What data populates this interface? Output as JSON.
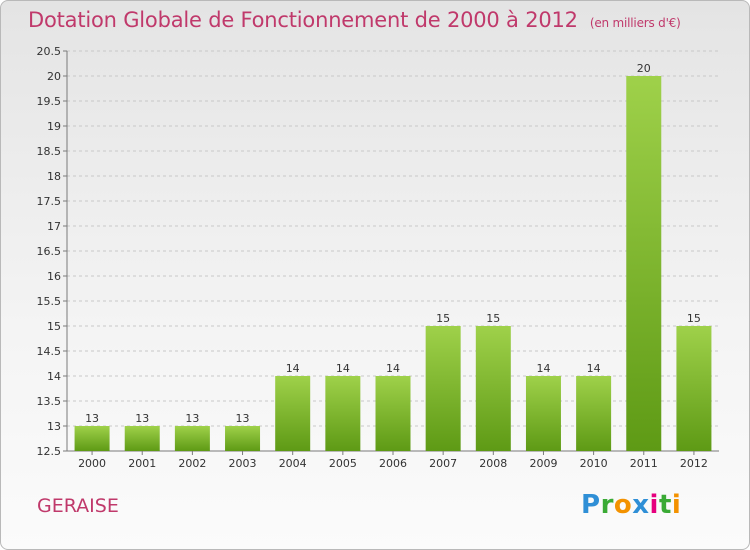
{
  "title": "Dotation Globale de Fonctionnement de 2000 à 2012",
  "subtitle": "(en milliers d'€)",
  "commune": "GERAISE",
  "logo": {
    "letters": [
      "P",
      "r",
      "o",
      "x",
      "i",
      "t",
      "i"
    ],
    "colors": [
      "#2f8fd6",
      "#3aaa35",
      "#f39200",
      "#2f8fd6",
      "#e6007e",
      "#3aaa35",
      "#f39200"
    ]
  },
  "colors": {
    "title": "#c0396b",
    "bar_light": "#9fd14a",
    "bar_dark": "#5e9a15",
    "grid": "#c8c8c8",
    "axis": "#7a7a7a"
  },
  "chart_data": {
    "type": "bar",
    "categories": [
      "2000",
      "2001",
      "2002",
      "2003",
      "2004",
      "2005",
      "2006",
      "2007",
      "2008",
      "2009",
      "2010",
      "2011",
      "2012"
    ],
    "values": [
      13,
      13,
      13,
      13,
      14,
      14,
      14,
      15,
      15,
      14,
      14,
      20,
      15
    ],
    "labels": [
      "13",
      "13",
      "13",
      "13",
      "14",
      "14",
      "14",
      "15",
      "15",
      "14",
      "14",
      "20",
      "15"
    ],
    "ylim": [
      12.5,
      20.5
    ],
    "yticks": [
      "12.5",
      "13",
      "13.5",
      "14",
      "14.5",
      "15",
      "15.5",
      "16",
      "16.5",
      "17",
      "17.5",
      "18",
      "18.5",
      "19",
      "19.5",
      "20",
      "20.5"
    ],
    "grid": true
  }
}
